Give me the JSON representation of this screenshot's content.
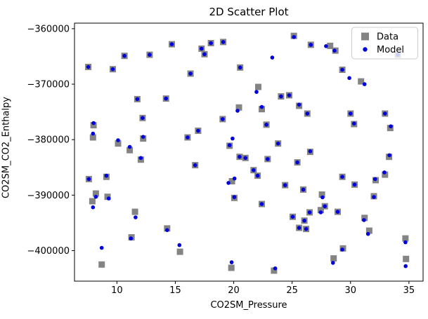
{
  "title": "2D Scatter Plot",
  "xlabel": "CO2SM_Pressure",
  "ylabel": "CO2SM_CO2_Enthalpy",
  "legend": {
    "items": [
      "Data",
      "Model"
    ],
    "position": "upper right"
  },
  "colors": {
    "data_marker": "#848484",
    "model_marker": "#0000dd",
    "spine": "#000000",
    "legend_border": "#cccccc",
    "background": "#ffffff"
  },
  "chart_data": {
    "type": "scatter",
    "title": "2D Scatter Plot",
    "xlabel": "CO2SM_Pressure",
    "ylabel": "CO2SM_CO2_Enthalpy",
    "xlim": [
      6.37,
      36.21
    ],
    "ylim": [
      -405500,
      -359000
    ],
    "xticks": [
      10,
      15,
      20,
      25,
      30,
      35
    ],
    "yticks": [
      -360000,
      -370000,
      -380000,
      -390000,
      -400000
    ],
    "grid": false,
    "legend_position": "upper right",
    "series": [
      {
        "name": "Data",
        "marker": "square",
        "color": "#848484",
        "points": [
          [
            7.55,
            -366900
          ],
          [
            9.65,
            -367300
          ],
          [
            10.65,
            -364900
          ],
          [
            11.75,
            -372700
          ],
          [
            12.8,
            -364700
          ],
          [
            14.2,
            -372600
          ],
          [
            14.7,
            -362800
          ],
          [
            16.3,
            -368100
          ],
          [
            17.25,
            -363600
          ],
          [
            17.5,
            -364600
          ],
          [
            18.05,
            -362600
          ],
          [
            19.1,
            -362400
          ],
          [
            20.55,
            -367000
          ],
          [
            20.45,
            -374200
          ],
          [
            25.15,
            -361300
          ],
          [
            26.6,
            -362900
          ],
          [
            28.25,
            -363100
          ],
          [
            28.7,
            -363950
          ],
          [
            29.3,
            -367400
          ],
          [
            30.9,
            -369500
          ],
          [
            22.1,
            -370500
          ],
          [
            24.05,
            -372200
          ],
          [
            24.75,
            -372000
          ],
          [
            25.6,
            -373900
          ],
          [
            22.4,
            -374500
          ],
          [
            8.0,
            -377400
          ],
          [
            7.95,
            -379600
          ],
          [
            10.1,
            -380700
          ],
          [
            11.1,
            -381900
          ],
          [
            12.2,
            -376100
          ],
          [
            12.25,
            -379800
          ],
          [
            12.05,
            -383600
          ],
          [
            7.6,
            -387100
          ],
          [
            9.1,
            -386700
          ],
          [
            16.05,
            -379600
          ],
          [
            16.95,
            -378400
          ],
          [
            19.05,
            -376300
          ],
          [
            16.7,
            -384600
          ],
          [
            19.65,
            -381100
          ],
          [
            20.5,
            -383100
          ],
          [
            21.0,
            -383300
          ],
          [
            19.85,
            -387500
          ],
          [
            20.05,
            -390500
          ],
          [
            22.8,
            -377300
          ],
          [
            26.3,
            -375300
          ],
          [
            30.0,
            -375300
          ],
          [
            30.3,
            -377200
          ],
          [
            32.95,
            -375300
          ],
          [
            33.4,
            -377900
          ],
          [
            23.8,
            -380700
          ],
          [
            26.55,
            -382200
          ],
          [
            22.9,
            -383500
          ],
          [
            25.45,
            -384100
          ],
          [
            21.7,
            -385500
          ],
          [
            22.05,
            -386500
          ],
          [
            24.4,
            -388200
          ],
          [
            25.95,
            -389000
          ],
          [
            27.55,
            -389900
          ],
          [
            29.3,
            -386700
          ],
          [
            30.35,
            -388100
          ],
          [
            32.15,
            -387300
          ],
          [
            32.95,
            -386300
          ],
          [
            32.0,
            -390200
          ],
          [
            33.3,
            -383100
          ],
          [
            8.2,
            -389700
          ],
          [
            7.9,
            -391100
          ],
          [
            9.2,
            -390300
          ],
          [
            11.55,
            -393000
          ],
          [
            14.3,
            -396000
          ],
          [
            11.25,
            -397600
          ],
          [
            15.4,
            -400200
          ],
          [
            8.7,
            -402500
          ],
          [
            19.8,
            -403100
          ],
          [
            22.4,
            -391600
          ],
          [
            23.45,
            -403600
          ],
          [
            25.05,
            -393900
          ],
          [
            26.05,
            -394600
          ],
          [
            26.5,
            -393100
          ],
          [
            25.6,
            -395900
          ],
          [
            26.2,
            -396100
          ],
          [
            27.45,
            -392700
          ],
          [
            27.8,
            -392000
          ],
          [
            28.9,
            -393000
          ],
          [
            29.35,
            -399600
          ],
          [
            28.55,
            -401400
          ],
          [
            31.2,
            -394100
          ],
          [
            31.6,
            -396400
          ],
          [
            34.7,
            -397800
          ],
          [
            34.75,
            -401500
          ],
          [
            34.05,
            -364700
          ]
        ]
      },
      {
        "name": "Model",
        "marker": "dot",
        "color": "#0000dd",
        "points": [
          [
            7.55,
            -366900
          ],
          [
            9.65,
            -367300
          ],
          [
            10.65,
            -364900
          ],
          [
            11.75,
            -372700
          ],
          [
            12.8,
            -364700
          ],
          [
            14.2,
            -372600
          ],
          [
            14.7,
            -362800
          ],
          [
            16.3,
            -368100
          ],
          [
            17.25,
            -363600
          ],
          [
            17.5,
            -364600
          ],
          [
            18.05,
            -362600
          ],
          [
            19.1,
            -362400
          ],
          [
            20.55,
            -367000
          ],
          [
            20.33,
            -374800
          ],
          [
            25.15,
            -361500
          ],
          [
            26.6,
            -362900
          ],
          [
            27.9,
            -363150
          ],
          [
            28.63,
            -363950
          ],
          [
            29.3,
            -367400
          ],
          [
            31.2,
            -370000
          ],
          [
            21.95,
            -371400
          ],
          [
            24.05,
            -372200
          ],
          [
            24.75,
            -372000
          ],
          [
            25.6,
            -373700
          ],
          [
            22.4,
            -374100
          ],
          [
            8.0,
            -377000
          ],
          [
            7.95,
            -378900
          ],
          [
            10.1,
            -380100
          ],
          [
            11.1,
            -381300
          ],
          [
            12.2,
            -376100
          ],
          [
            12.25,
            -379500
          ],
          [
            12.05,
            -383300
          ],
          [
            7.6,
            -387100
          ],
          [
            9.1,
            -386500
          ],
          [
            16.05,
            -379600
          ],
          [
            16.95,
            -378400
          ],
          [
            19.05,
            -376300
          ],
          [
            16.7,
            -384600
          ],
          [
            19.65,
            -381000
          ],
          [
            20.5,
            -383100
          ],
          [
            21.0,
            -383300
          ],
          [
            19.55,
            -387800
          ],
          [
            20.05,
            -390350
          ],
          [
            22.8,
            -377300
          ],
          [
            26.3,
            -375300
          ],
          [
            30.0,
            -375300
          ],
          [
            30.3,
            -377100
          ],
          [
            32.95,
            -375300
          ],
          [
            33.45,
            -377600
          ],
          [
            23.8,
            -380700
          ],
          [
            26.55,
            -382100
          ],
          [
            22.9,
            -383500
          ],
          [
            25.45,
            -384100
          ],
          [
            21.7,
            -385500
          ],
          [
            22.05,
            -386500
          ],
          [
            24.4,
            -388200
          ],
          [
            25.95,
            -389000
          ],
          [
            27.6,
            -390400
          ],
          [
            29.3,
            -386700
          ],
          [
            30.35,
            -388100
          ],
          [
            32.1,
            -387100
          ],
          [
            32.9,
            -385900
          ],
          [
            32.0,
            -390340
          ],
          [
            33.33,
            -382800
          ],
          [
            8.2,
            -390300
          ],
          [
            7.95,
            -392200
          ],
          [
            9.3,
            -390600
          ],
          [
            11.6,
            -394000
          ],
          [
            14.3,
            -396300
          ],
          [
            11.2,
            -397800
          ],
          [
            15.35,
            -399000
          ],
          [
            19.82,
            -402100
          ],
          [
            22.4,
            -391600
          ],
          [
            23.55,
            -403200
          ],
          [
            25.05,
            -393900
          ],
          [
            26.05,
            -394600
          ],
          [
            26.5,
            -393100
          ],
          [
            25.6,
            -395900
          ],
          [
            26.2,
            -396100
          ],
          [
            27.45,
            -393100
          ],
          [
            27.8,
            -392000
          ],
          [
            28.9,
            -393000
          ],
          [
            29.3,
            -399800
          ],
          [
            28.5,
            -402200
          ],
          [
            31.15,
            -394500
          ],
          [
            31.5,
            -397000
          ],
          [
            34.7,
            -398500
          ],
          [
            34.72,
            -402800
          ],
          [
            23.3,
            -365200
          ],
          [
            29.9,
            -368900
          ],
          [
            19.9,
            -379800
          ],
          [
            20.07,
            -387000
          ],
          [
            8.7,
            -399500
          ],
          [
            34.05,
            -364700
          ]
        ]
      }
    ]
  }
}
